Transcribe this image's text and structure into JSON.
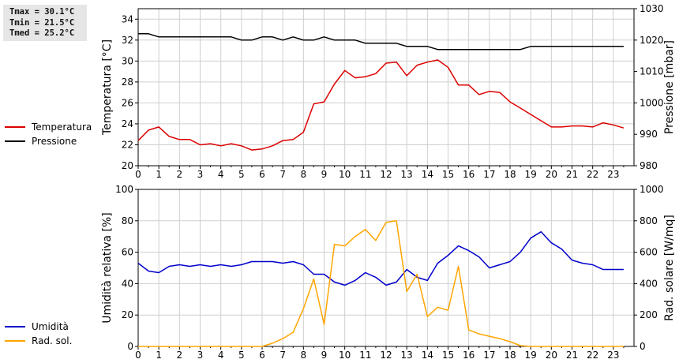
{
  "stats": {
    "tmax": "Tmax = 30.1°C",
    "tmin": "Tmin = 21.5°C",
    "tmed": "Tmed = 25.2°C"
  },
  "colors": {
    "temperatura": "#dd0000",
    "pressione": "#000000",
    "umidita": "#0000cc",
    "radsol": "#ffa500",
    "grid": "#cfcfcf"
  },
  "chart_data": [
    {
      "type": "line",
      "x_ticks": [
        0,
        1,
        2,
        3,
        4,
        5,
        6,
        7,
        8,
        9,
        10,
        11,
        12,
        13,
        14,
        15,
        16,
        17,
        18,
        19,
        20,
        21,
        22,
        23
      ],
      "xlim": [
        0,
        24
      ],
      "ylabel": "Temperatura [°C]",
      "ylim": [
        20,
        35
      ],
      "y_ticks": [
        20,
        22,
        24,
        26,
        28,
        30,
        32,
        34
      ],
      "ylabel_right": "Pressione [mbar]",
      "ylim_right": [
        980,
        1030
      ],
      "y_ticks_right": [
        980,
        990,
        1000,
        1010,
        1020,
        1030
      ],
      "grid": true,
      "legend": [
        {
          "name": "Temperatura",
          "color": "#dd0000"
        },
        {
          "name": "Pressione",
          "color": "#000000"
        }
      ],
      "series": [
        {
          "name": "Temperatura",
          "axis": "left",
          "x": [
            0,
            0.5,
            1,
            1.5,
            2,
            2.5,
            3,
            3.5,
            4,
            4.5,
            5,
            5.5,
            6,
            6.5,
            7,
            7.5,
            8,
            8.5,
            9,
            9.5,
            10,
            10.5,
            11,
            11.5,
            12,
            12.5,
            13,
            13.5,
            14,
            14.5,
            15,
            15.5,
            16,
            16.5,
            17,
            17.5,
            18,
            18.5,
            19,
            19.5,
            20,
            20.5,
            21,
            21.5,
            22,
            22.5,
            23,
            23.5
          ],
          "values": [
            22.4,
            23.4,
            23.7,
            22.8,
            22.5,
            22.5,
            22.0,
            22.1,
            21.9,
            22.1,
            21.9,
            21.5,
            21.6,
            21.9,
            22.4,
            22.5,
            23.2,
            25.9,
            26.1,
            27.8,
            29.1,
            28.4,
            28.5,
            28.8,
            29.8,
            29.9,
            28.6,
            29.6,
            29.9,
            30.1,
            29.4,
            27.7,
            27.7,
            26.8,
            27.1,
            27.0,
            26.1,
            25.5,
            24.9,
            24.3,
            23.7,
            23.7,
            23.8,
            23.8,
            23.7,
            24.1,
            23.9,
            23.6
          ]
        },
        {
          "name": "Pressione",
          "axis": "right",
          "x": [
            0,
            0.5,
            1,
            1.5,
            2,
            2.5,
            3,
            3.5,
            4,
            4.5,
            5,
            5.5,
            6,
            6.5,
            7,
            7.5,
            8,
            8.5,
            9,
            9.5,
            10,
            10.5,
            11,
            11.5,
            12,
            12.5,
            13,
            13.5,
            14,
            14.5,
            15,
            15.5,
            16,
            16.5,
            17,
            17.5,
            18,
            18.5,
            19,
            19.5,
            20,
            20.5,
            21,
            21.5,
            22,
            22.5,
            23,
            23.5
          ],
          "values": [
            1022,
            1022,
            1021,
            1021,
            1021,
            1021,
            1021,
            1021,
            1021,
            1021,
            1020,
            1020,
            1021,
            1021,
            1020,
            1021,
            1020,
            1020,
            1021,
            1020,
            1020,
            1020,
            1019,
            1019,
            1019,
            1019,
            1018,
            1018,
            1018,
            1017,
            1017,
            1017,
            1017,
            1017,
            1017,
            1017,
            1017,
            1017,
            1018,
            1018,
            1018,
            1018,
            1018,
            1018,
            1018,
            1018,
            1018,
            1018
          ]
        }
      ]
    },
    {
      "type": "line",
      "x_ticks": [
        0,
        1,
        2,
        3,
        4,
        5,
        6,
        7,
        8,
        9,
        10,
        11,
        12,
        13,
        14,
        15,
        16,
        17,
        18,
        19,
        20,
        21,
        22,
        23
      ],
      "xlim": [
        0,
        24
      ],
      "ylabel": "Umidità relativa [%]",
      "ylim": [
        0,
        100
      ],
      "y_ticks": [
        0,
        20,
        40,
        60,
        80,
        100
      ],
      "ylabel_right": "Rad. solare [W/mq]",
      "ylim_right": [
        0,
        1000
      ],
      "y_ticks_right": [
        0,
        200,
        400,
        600,
        800,
        1000
      ],
      "grid": true,
      "legend": [
        {
          "name": "Umidità",
          "color": "#0000cc"
        },
        {
          "name": "Rad. sol.",
          "color": "#ffa500"
        }
      ],
      "series": [
        {
          "name": "Umidità",
          "axis": "left",
          "x": [
            0,
            0.5,
            1,
            1.5,
            2,
            2.5,
            3,
            3.5,
            4,
            4.5,
            5,
            5.5,
            6,
            6.5,
            7,
            7.5,
            8,
            8.5,
            9,
            9.5,
            10,
            10.5,
            11,
            11.5,
            12,
            12.5,
            13,
            13.5,
            14,
            14.5,
            15,
            15.5,
            16,
            16.5,
            17,
            17.5,
            18,
            18.5,
            19,
            19.5,
            20,
            20.5,
            21,
            21.5,
            22,
            22.5,
            23,
            23.5
          ],
          "values": [
            53,
            48,
            47,
            51,
            52,
            51,
            52,
            51,
            52,
            51,
            52,
            54,
            54,
            54,
            53,
            54,
            52,
            46,
            46,
            41,
            39,
            42,
            47,
            44,
            39,
            41,
            49,
            44,
            42,
            53,
            58,
            64,
            61,
            57,
            50,
            52,
            54,
            60,
            69,
            73,
            66,
            62,
            55,
            53,
            52,
            49,
            49,
            49
          ]
        },
        {
          "name": "Rad. sol.",
          "axis": "right",
          "x": [
            0,
            0.5,
            1,
            1.5,
            2,
            2.5,
            3,
            3.5,
            4,
            4.5,
            5,
            5.5,
            6,
            6.5,
            7,
            7.5,
            8,
            8.5,
            9,
            9.5,
            10,
            10.5,
            11,
            11.5,
            12,
            12.5,
            13,
            13.5,
            14,
            14.5,
            15,
            15.5,
            16,
            16.5,
            17,
            17.5,
            18,
            18.5,
            19,
            19.5,
            20,
            20.5,
            21,
            21.5,
            22,
            22.5,
            23,
            23.5
          ],
          "values": [
            0,
            0,
            0,
            0,
            0,
            0,
            0,
            0,
            0,
            0,
            0,
            0,
            0,
            20,
            50,
            90,
            240,
            430,
            140,
            650,
            640,
            700,
            745,
            675,
            790,
            800,
            350,
            460,
            190,
            250,
            230,
            510,
            105,
            80,
            65,
            50,
            30,
            5,
            0,
            0,
            0,
            0,
            0,
            0,
            0,
            0,
            0,
            0
          ]
        }
      ]
    }
  ]
}
